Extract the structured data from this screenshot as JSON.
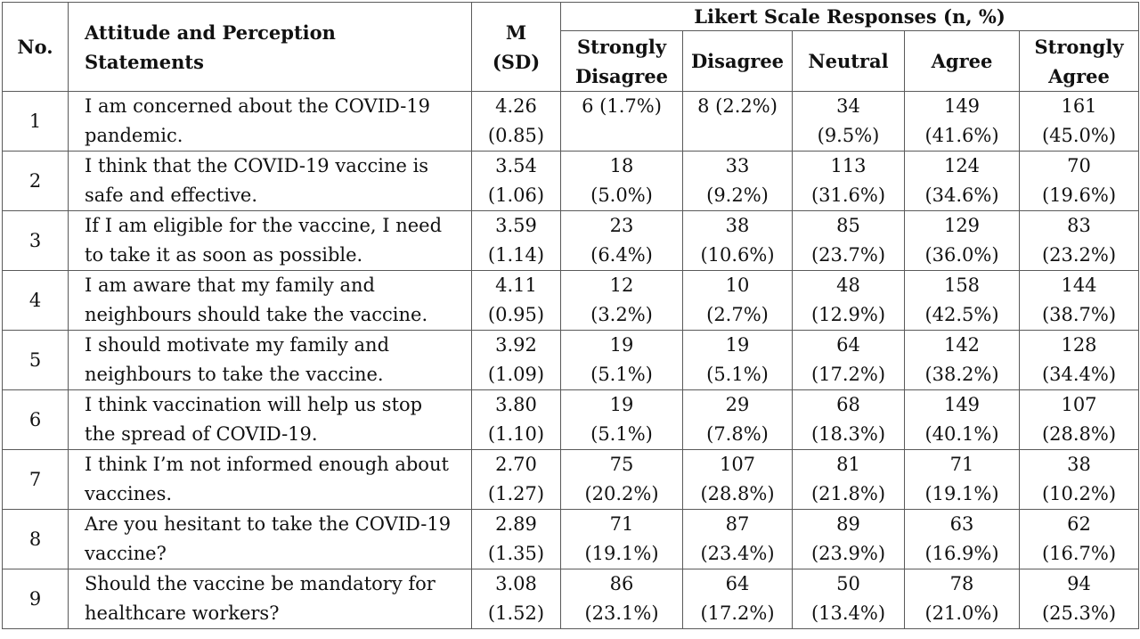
{
  "table": {
    "headers": {
      "no": "No.",
      "statement_line1": "Attitude and Perception",
      "statement_line2": "Statements",
      "m_line1": "M",
      "m_line2": "(SD)",
      "likert_group": "Likert Scale Responses (n, %)",
      "sub": [
        {
          "line1": "Strongly",
          "line2": "Disagree"
        },
        {
          "line1": "Disagree",
          "line2": ""
        },
        {
          "line1": "Neutral",
          "line2": ""
        },
        {
          "line1": "Agree",
          "line2": ""
        },
        {
          "line1": "Strongly",
          "line2": "Agree"
        }
      ]
    },
    "rows": [
      {
        "no": "1",
        "statement": [
          "I am concerned about the COVID-19",
          "pandemic."
        ],
        "m": "4.26",
        "sd": "(0.85)",
        "cells": [
          [
            "6 (1.7%)",
            ""
          ],
          [
            "8 (2.2%)",
            ""
          ],
          [
            "34",
            "(9.5%)"
          ],
          [
            "149",
            "(41.6%)"
          ],
          [
            "161",
            "(45.0%)"
          ]
        ]
      },
      {
        "no": "2",
        "statement": [
          "I think that the COVID-19 vaccine is",
          "safe and effective."
        ],
        "m": "3.54",
        "sd": "(1.06)",
        "cells": [
          [
            "18",
            "(5.0%)"
          ],
          [
            "33",
            "(9.2%)"
          ],
          [
            "113",
            "(31.6%)"
          ],
          [
            "124",
            "(34.6%)"
          ],
          [
            "70",
            "(19.6%)"
          ]
        ]
      },
      {
        "no": "3",
        "statement": [
          "If I am eligible for the vaccine, I need",
          "to take it as soon as possible."
        ],
        "m": "3.59",
        "sd": "(1.14)",
        "cells": [
          [
            "23",
            "(6.4%)"
          ],
          [
            "38",
            "(10.6%)"
          ],
          [
            "85",
            "(23.7%)"
          ],
          [
            "129",
            "(36.0%)"
          ],
          [
            "83",
            "(23.2%)"
          ]
        ]
      },
      {
        "no": "4",
        "statement": [
          "I am aware that my family and",
          "neighbours should take the vaccine."
        ],
        "m": "4.11",
        "sd": "(0.95)",
        "cells": [
          [
            "12",
            "(3.2%)"
          ],
          [
            "10",
            "(2.7%)"
          ],
          [
            "48",
            "(12.9%)"
          ],
          [
            "158",
            "(42.5%)"
          ],
          [
            "144",
            "(38.7%)"
          ]
        ]
      },
      {
        "no": "5",
        "statement": [
          "I should motivate my family and",
          "neighbours to take the vaccine."
        ],
        "m": "3.92",
        "sd": "(1.09)",
        "cells": [
          [
            "19",
            "(5.1%)"
          ],
          [
            "19",
            "(5.1%)"
          ],
          [
            "64",
            "(17.2%)"
          ],
          [
            "142",
            "(38.2%)"
          ],
          [
            "128",
            "(34.4%)"
          ]
        ]
      },
      {
        "no": "6",
        "statement": [
          "I think vaccination will help us stop",
          "the spread of COVID-19."
        ],
        "m": "3.80",
        "sd": "(1.10)",
        "cells": [
          [
            "19",
            "(5.1%)"
          ],
          [
            "29",
            "(7.8%)"
          ],
          [
            "68",
            "(18.3%)"
          ],
          [
            "149",
            "(40.1%)"
          ],
          [
            "107",
            "(28.8%)"
          ]
        ]
      },
      {
        "no": "7",
        "statement": [
          "I think I’m not informed enough about",
          "vaccines."
        ],
        "m": "2.70",
        "sd": "(1.27)",
        "cells": [
          [
            "75",
            "(20.2%)"
          ],
          [
            "107",
            "(28.8%)"
          ],
          [
            "81",
            "(21.8%)"
          ],
          [
            "71",
            "(19.1%)"
          ],
          [
            "38",
            "(10.2%)"
          ]
        ]
      },
      {
        "no": "8",
        "statement": [
          "Are you hesitant to take the COVID-19",
          "vaccine?"
        ],
        "m": "2.89",
        "sd": "(1.35)",
        "cells": [
          [
            "71",
            "(19.1%)"
          ],
          [
            "87",
            "(23.4%)"
          ],
          [
            "89",
            "(23.9%)"
          ],
          [
            "63",
            "(16.9%)"
          ],
          [
            "62",
            "(16.7%)"
          ]
        ]
      },
      {
        "no": "9",
        "statement": [
          "Should the vaccine be mandatory for",
          "healthcare workers?"
        ],
        "m": "3.08",
        "sd": "(1.52)",
        "cells": [
          [
            "86",
            "(23.1%)"
          ],
          [
            "64",
            "(17.2%)"
          ],
          [
            "50",
            "(13.4%)"
          ],
          [
            "78",
            "(21.0%)"
          ],
          [
            "94",
            "(25.3%)"
          ]
        ]
      }
    ]
  }
}
